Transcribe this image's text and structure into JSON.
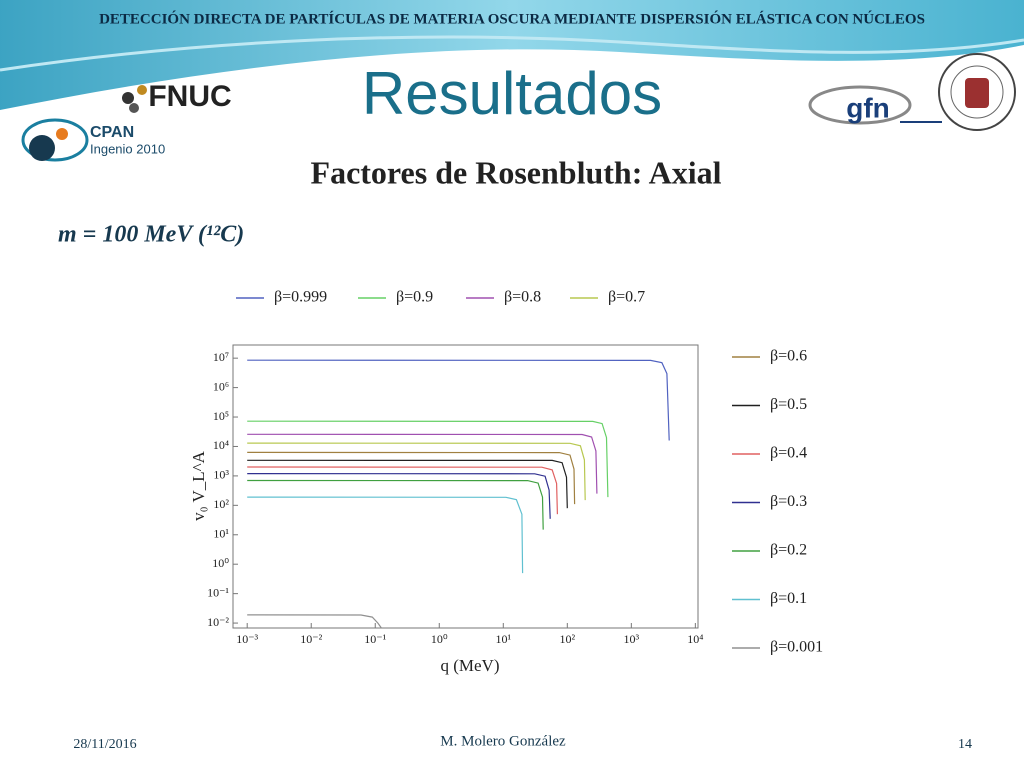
{
  "slide": {
    "header": "DETECCIÓN DIRECTA DE PARTÍCULAS DE MATERIA OSCURA MEDIANTE DISPERSIÓN ELÁSTICA CON NÚCLEOS",
    "title": "Resultados",
    "logos": [
      "FNUC",
      "CPAN",
      "Ingenio 2010",
      "gfn"
    ],
    "subtitle": "Factores de Rosenbluth: Axial",
    "note": "m = 100 MeV (¹²C)",
    "footer": {
      "date": "28/11/2016",
      "author": "M. Molero González",
      "page": "14"
    }
  },
  "chart_data": {
    "type": "line",
    "xlabel": "q  (MeV)",
    "ylabel": "v₀ V_L^A",
    "log_x": true,
    "log_y": true,
    "grid": false,
    "xlim": [
      0.0006,
      11000
    ],
    "ylim": [
      0.0068,
      28000000
    ],
    "xticks": [
      {
        "value": 0.001,
        "label": "10⁻³"
      },
      {
        "value": 0.01,
        "label": "10⁻²"
      },
      {
        "value": 0.1,
        "label": "10⁻¹"
      },
      {
        "value": 1,
        "label": "10⁰"
      },
      {
        "value": 10,
        "label": "10¹"
      },
      {
        "value": 100,
        "label": "10²"
      },
      {
        "value": 1000,
        "label": "10³"
      },
      {
        "value": 10000,
        "label": "10⁴"
      }
    ],
    "yticks": [
      {
        "value": 0.01,
        "label": "10⁻²"
      },
      {
        "value": 0.1,
        "label": "10⁻¹"
      },
      {
        "value": 1,
        "label": "10⁰"
      },
      {
        "value": 10,
        "label": "10¹"
      },
      {
        "value": 100,
        "label": "10²"
      },
      {
        "value": 1000,
        "label": "10³"
      },
      {
        "value": 10000,
        "label": "10⁴"
      },
      {
        "value": 100000,
        "label": "10⁵"
      },
      {
        "value": 1000000,
        "label": "10⁶"
      },
      {
        "value": 10000000,
        "label": "10⁷"
      }
    ],
    "series": [
      {
        "name": "β=0.999",
        "color": "#5062c0",
        "x": [
          0.001,
          2000,
          3000,
          3600,
          3900
        ],
        "values": [
          8500000,
          8400000,
          7000000,
          3000000,
          16000
        ]
      },
      {
        "name": "β=0.9",
        "color": "#66d066",
        "x": [
          0.001,
          250,
          350,
          410,
          430
        ],
        "values": [
          72000,
          71000,
          60000,
          20000,
          190
        ]
      },
      {
        "name": "β=0.8",
        "color": "#a050b0",
        "x": [
          0.001,
          170,
          240,
          280,
          290
        ],
        "values": [
          26000,
          25500,
          21000,
          7000,
          250
        ]
      },
      {
        "name": "β=0.7",
        "color": "#b8c850",
        "x": [
          0.001,
          110,
          160,
          185,
          190
        ],
        "values": [
          13000,
          12800,
          10500,
          3500,
          150
        ]
      },
      {
        "name": "β=0.6",
        "color": "#a08040",
        "x": [
          0.001,
          75,
          110,
          127,
          130
        ],
        "values": [
          6300,
          6200,
          5100,
          1700,
          110
        ]
      },
      {
        "name": "β=0.5",
        "color": "#202020",
        "x": [
          0.001,
          58,
          83,
          97,
          100
        ],
        "values": [
          3400,
          3350,
          2800,
          900,
          80
        ]
      },
      {
        "name": "β=0.4",
        "color": "#e06060",
        "x": [
          0.001,
          40,
          58,
          68,
          70
        ],
        "values": [
          2000,
          1970,
          1600,
          550,
          50
        ]
      },
      {
        "name": "β=0.3",
        "color": "#303090",
        "x": [
          0.001,
          31,
          45,
          52,
          54
        ],
        "values": [
          1200,
          1180,
          980,
          330,
          35
        ]
      },
      {
        "name": "β=0.2",
        "color": "#40a040",
        "x": [
          0.001,
          24,
          35,
          41,
          42
        ],
        "values": [
          700,
          690,
          570,
          190,
          15
        ]
      },
      {
        "name": "β=0.1",
        "color": "#60c0d0",
        "x": [
          0.001,
          11,
          16,
          19.5,
          20
        ],
        "values": [
          190,
          187,
          155,
          50,
          0.5
        ]
      },
      {
        "name": "β=0.001",
        "color": "#909090",
        "x": [
          0.001,
          0.06,
          0.09,
          0.11,
          0.125
        ],
        "values": [
          0.019,
          0.0188,
          0.016,
          0.01,
          0.0068
        ]
      }
    ]
  }
}
